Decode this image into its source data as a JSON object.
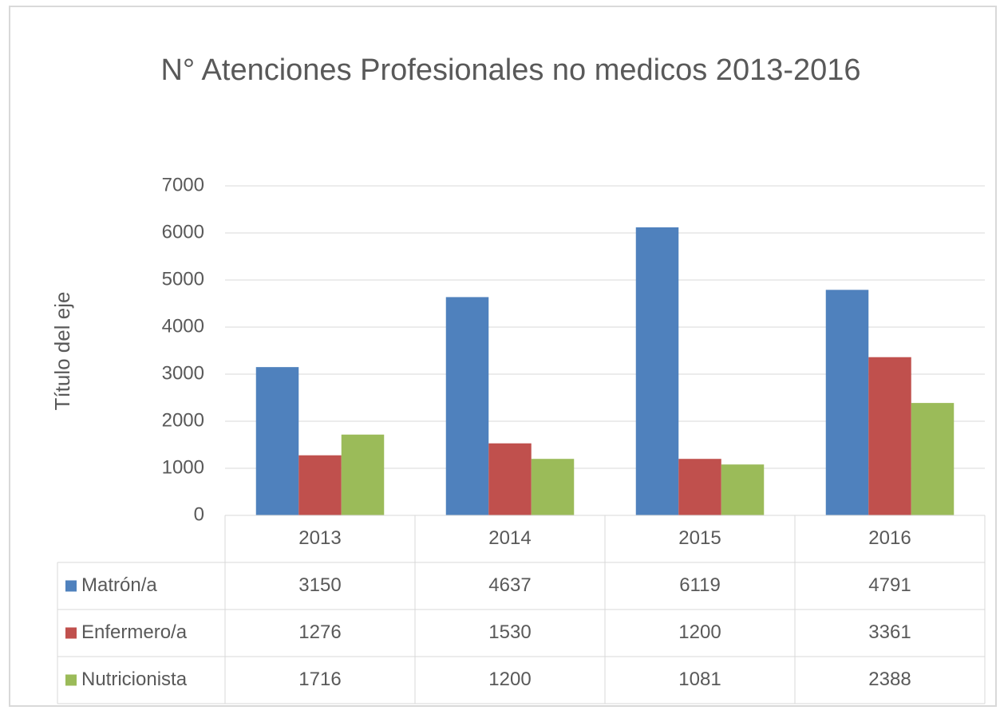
{
  "chart_data": {
    "type": "bar",
    "title": "N° Atenciones Profesionales no medicos 2013-2016",
    "y_axis_label": "Título del eje",
    "categories": [
      "2013",
      "2014",
      "2015",
      "2016"
    ],
    "series": [
      {
        "name": "Matrón/a",
        "color": "#4f81bd",
        "values": [
          3150,
          4637,
          6119,
          4791
        ]
      },
      {
        "name": "Enfermero/a",
        "color": "#c0504d",
        "values": [
          1276,
          1530,
          1200,
          3361
        ]
      },
      {
        "name": "Nutricionista",
        "color": "#9bbb59",
        "values": [
          1716,
          1200,
          1081,
          2388
        ]
      }
    ],
    "ylim": [
      0,
      7000
    ],
    "yticks": [
      0,
      1000,
      2000,
      3000,
      4000,
      5000,
      6000,
      7000
    ],
    "grid": true,
    "data_table": true
  }
}
